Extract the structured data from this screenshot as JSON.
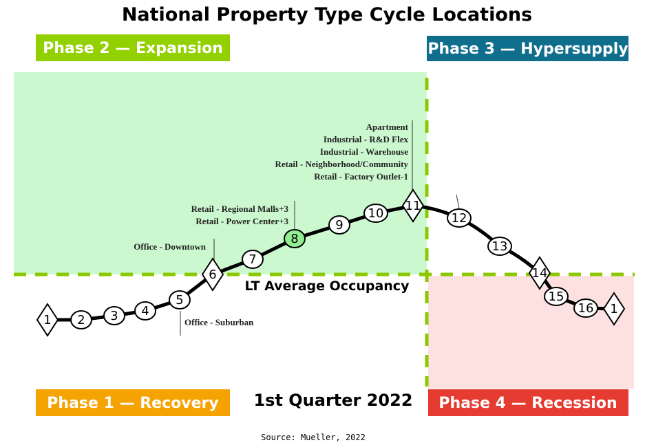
{
  "title": "National Property Type Cycle Locations",
  "phases": {
    "phase1": {
      "label": "Phase 1 — Recovery",
      "color": "#f5a300"
    },
    "phase2": {
      "label": "Phase 2 — Expansion",
      "color": "#92d000"
    },
    "phase3": {
      "label": "Phase 3 — Hypersupply",
      "color": "#0f6e8c"
    },
    "phase4": {
      "label": "Phase 4 — Recession",
      "color": "#e53b30"
    }
  },
  "occupancy_label": "LT Average Occupancy",
  "quarter": "1st Quarter 2022",
  "source": "Source: Mueller, 2022",
  "nodes": [
    {
      "n": "1",
      "shape": "diamond"
    },
    {
      "n": "2",
      "shape": "circle"
    },
    {
      "n": "3",
      "shape": "circle"
    },
    {
      "n": "4",
      "shape": "circle"
    },
    {
      "n": "5",
      "shape": "circle"
    },
    {
      "n": "6",
      "shape": "diamond"
    },
    {
      "n": "7",
      "shape": "circle"
    },
    {
      "n": "8",
      "shape": "circle",
      "highlight": "#90ee90"
    },
    {
      "n": "9",
      "shape": "circle"
    },
    {
      "n": "10",
      "shape": "circle"
    },
    {
      "n": "11",
      "shape": "diamond"
    },
    {
      "n": "12",
      "shape": "circle"
    },
    {
      "n": "13",
      "shape": "circle"
    },
    {
      "n": "14",
      "shape": "diamond"
    },
    {
      "n": "15",
      "shape": "circle"
    },
    {
      "n": "16",
      "shape": "circle"
    },
    {
      "n": "1",
      "shape": "diamond"
    }
  ],
  "annotations": {
    "point5": [
      "Office - Suburban"
    ],
    "point6": [
      "Office - Downtown"
    ],
    "point8": [
      "Retail - Regional Malls+3",
      "Retail - Power Center+3"
    ],
    "point11": [
      "Apartment",
      "Industrial - R&D Flex",
      "Industrial - Warehouse",
      "Retail  - Neighborhood/Community",
      "Retail - Factory Outlet-1"
    ]
  }
}
